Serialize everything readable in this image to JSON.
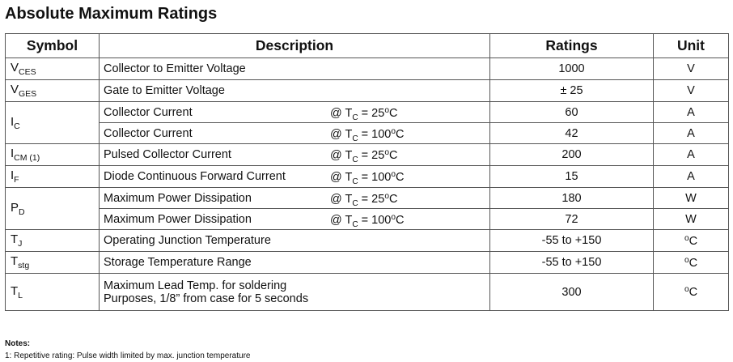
{
  "title": "Absolute Maximum Ratings",
  "table": {
    "header": [
      "Symbol",
      "Description",
      "Ratings",
      "Unit"
    ],
    "groups": [
      {
        "symbol": {
          "main": "V",
          "sub": "CES"
        },
        "rows": [
          {
            "description": [
              "Collector to Emitter Voltage"
            ],
            "rating": "1000",
            "unit": {
              "main": "V"
            }
          }
        ]
      },
      {
        "symbol": {
          "main": "V",
          "sub": "GES"
        },
        "rows": [
          {
            "description": [
              "Gate to Emitter Voltage"
            ],
            "rating": "± 25",
            "unit": {
              "main": "V"
            }
          }
        ]
      },
      {
        "symbol": {
          "main": "I",
          "sub": "C"
        },
        "rows": [
          {
            "description": [
              "Collector Current"
            ],
            "condition": {
              "prefix": "@ T",
              "sub": "C",
              "value": " = 25",
              "sup": "o",
              "unit": "C"
            },
            "rating": "60",
            "unit": {
              "main": "A"
            }
          },
          {
            "description": [
              "Collector Current"
            ],
            "condition": {
              "prefix": "@ T",
              "sub": "C",
              "value": " = 100",
              "sup": "o",
              "unit": "C"
            },
            "rating": "42",
            "unit": {
              "main": "A"
            }
          }
        ]
      },
      {
        "symbol": {
          "main": "I",
          "sub": "CM (1)"
        },
        "rows": [
          {
            "description": [
              "Pulsed Collector Current"
            ],
            "condition": {
              "prefix": "@ T",
              "sub": "C",
              "value": " = 25",
              "sup": "o",
              "unit": "C"
            },
            "rating": "200",
            "unit": {
              "main": "A"
            }
          }
        ]
      },
      {
        "symbol": {
          "main": "I",
          "sub": "F"
        },
        "rows": [
          {
            "description": [
              "Diode Continuous Forward Current"
            ],
            "condition": {
              "prefix": "@ T",
              "sub": "C",
              "value": " = 100",
              "sup": "o",
              "unit": "C"
            },
            "rating": "15",
            "unit": {
              "main": "A"
            }
          }
        ]
      },
      {
        "symbol": {
          "main": "P",
          "sub": "D"
        },
        "rows": [
          {
            "description": [
              "Maximum Power Dissipation"
            ],
            "condition": {
              "prefix": "@ T",
              "sub": "C",
              "value": " = 25",
              "sup": "o",
              "unit": "C"
            },
            "rating": "180",
            "unit": {
              "main": "W"
            }
          },
          {
            "description": [
              "Maximum Power Dissipation"
            ],
            "condition": {
              "prefix": "@ T",
              "sub": "C",
              "value": " = 100",
              "sup": "o",
              "unit": "C"
            },
            "rating": "72",
            "unit": {
              "main": "W"
            }
          }
        ]
      },
      {
        "symbol": {
          "main": "T",
          "sub": "J"
        },
        "rows": [
          {
            "description": [
              "Operating Junction Temperature"
            ],
            "rating": "-55 to +150",
            "unit": {
              "sup": "o",
              "main": "C"
            }
          }
        ]
      },
      {
        "symbol": {
          "main": "T",
          "sub": "stg"
        },
        "rows": [
          {
            "description": [
              "Storage Temperature Range"
            ],
            "rating": "-55 to +150",
            "unit": {
              "sup": "o",
              "main": "C"
            }
          }
        ]
      },
      {
        "symbol": {
          "main": "T",
          "sub": "L"
        },
        "rows": [
          {
            "description": [
              "Maximum Lead Temp. for soldering",
              "Purposes, 1/8” from case for 5 seconds"
            ],
            "rating": "300",
            "unit": {
              "sup": "o",
              "main": "C"
            }
          }
        ]
      }
    ]
  },
  "notes": {
    "title": "Notes:",
    "items": [
      "1: Repetitive rating: Pulse width limited by max. junction temperature"
    ]
  }
}
